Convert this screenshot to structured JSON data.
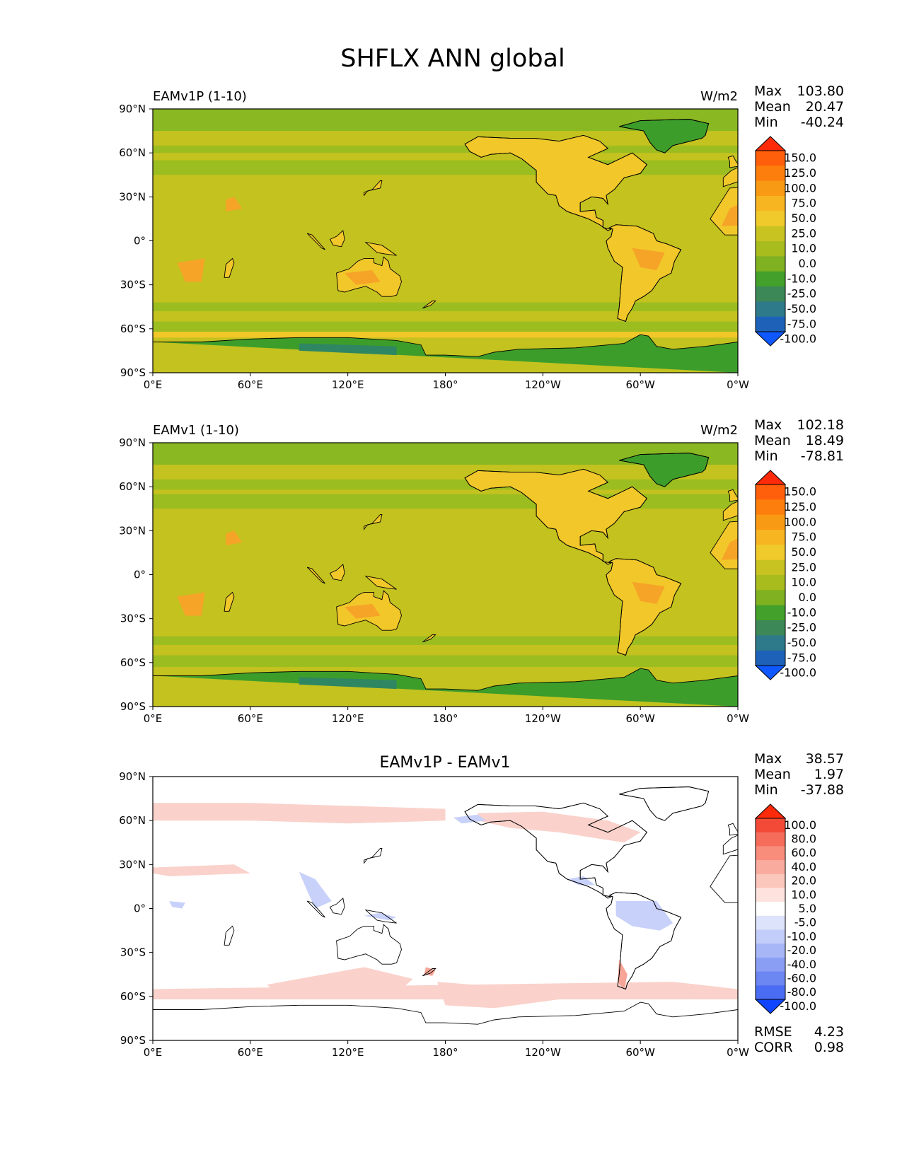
{
  "figure": {
    "title": "SHFLX ANN global"
  },
  "chart_data": [
    {
      "type": "heatmap",
      "panel_id": "test",
      "title_left": "EAMv1P (1-10)",
      "units": "W/m2",
      "stats": {
        "max_label": "Max",
        "max": "103.80",
        "mean_label": "Mean",
        "mean": "20.47",
        "min_label": "Min",
        "min": "-40.24"
      },
      "xticks": [
        "0°E",
        "60°E",
        "120°E",
        "180°",
        "120°W",
        "60°W",
        "0°W"
      ],
      "yticks": [
        "90°N",
        "60°N",
        "30°N",
        "0°",
        "30°S",
        "60°S",
        "90°S"
      ],
      "xlim": [
        0,
        360
      ],
      "ylim": [
        -90,
        90
      ],
      "colorbar": {
        "levels": [
          "150.0",
          "125.0",
          "100.0",
          "75.0",
          "50.0",
          "25.0",
          "10.0",
          "0.0",
          "-10.0",
          "-25.0",
          "-50.0",
          "-75.0",
          "-100.0"
        ],
        "colors_top_to_bottom": [
          "#ff2a0a",
          "#ff5f0a",
          "#fd7e0c",
          "#f99a14",
          "#f7b521",
          "#f0ca2a",
          "#c9c322",
          "#a8bc1e",
          "#7fb121",
          "#43a02a",
          "#3d8857",
          "#2e7a8a",
          "#1d62b8",
          "#0f58ff"
        ]
      },
      "map_field": {
        "ocean": "#c4c21f",
        "land": "#f2c72a",
        "hot_land": "#f6a427",
        "storm_track": "#9cbd20",
        "high_lat": "#8ab822",
        "antarctica": "#3c9d2b",
        "greenland": "#3c9d2b",
        "cold_patch": "#2f8662"
      }
    },
    {
      "type": "heatmap",
      "panel_id": "reference",
      "title_left": "EAMv1 (1-10)",
      "units": "W/m2",
      "stats": {
        "max_label": "Max",
        "max": "102.18",
        "mean_label": "Mean",
        "mean": "18.49",
        "min_label": "Min",
        "min": "-78.81"
      },
      "xticks": [
        "0°E",
        "60°E",
        "120°E",
        "180°",
        "120°W",
        "60°W",
        "0°W"
      ],
      "yticks": [
        "90°N",
        "60°N",
        "30°N",
        "0°",
        "30°S",
        "60°S",
        "90°S"
      ],
      "xlim": [
        0,
        360
      ],
      "ylim": [
        -90,
        90
      ],
      "colorbar": {
        "levels": [
          "150.0",
          "125.0",
          "100.0",
          "75.0",
          "50.0",
          "25.0",
          "10.0",
          "0.0",
          "-10.0",
          "-25.0",
          "-50.0",
          "-75.0",
          "-100.0"
        ],
        "colors_top_to_bottom": [
          "#ff2a0a",
          "#ff5f0a",
          "#fd7e0c",
          "#f99a14",
          "#f7b521",
          "#f0ca2a",
          "#c9c322",
          "#a8bc1e",
          "#7fb121",
          "#43a02a",
          "#3d8857",
          "#2e7a8a",
          "#1d62b8",
          "#0f58ff"
        ]
      },
      "map_field": {
        "ocean": "#c4c21f",
        "land": "#f2c72a",
        "hot_land": "#f6a427",
        "storm_track": "#9cbd20",
        "high_lat": "#8ab822",
        "antarctica": "#3c9d2b",
        "greenland": "#3c9d2b",
        "cold_patch": "#2f8662"
      }
    },
    {
      "type": "heatmap",
      "panel_id": "diff",
      "title_center": "EAMv1P - EAMv1",
      "stats": {
        "max_label": "Max",
        "max": "38.57",
        "mean_label": "Mean",
        "mean": "1.97",
        "min_label": "Min",
        "min": "-37.88"
      },
      "extra_stats": {
        "rmse_label": "RMSE",
        "rmse": "4.23",
        "corr_label": "CORR",
        "corr": "0.98"
      },
      "xticks": [
        "0°E",
        "60°E",
        "120°E",
        "180°",
        "120°W",
        "60°W",
        "0°W"
      ],
      "yticks": [
        "90°N",
        "60°N",
        "30°N",
        "0°",
        "30°S",
        "60°S",
        "90°S"
      ],
      "xlim": [
        0,
        360
      ],
      "ylim": [
        -90,
        90
      ],
      "colorbar": {
        "levels": [
          "100.0",
          "80.0",
          "60.0",
          "40.0",
          "20.0",
          "10.0",
          "5.0",
          "-5.0",
          "-10.0",
          "-20.0",
          "-40.0",
          "-60.0",
          "-80.0",
          "-100.0"
        ],
        "colors_top_to_bottom": [
          "#ff2a0a",
          "#f24a37",
          "#f66c5b",
          "#f88d7c",
          "#f9ab9d",
          "#fbc6bb",
          "#fde3dd",
          "#ffffff",
          "#dde3fb",
          "#c2cdf9",
          "#a6b6f6",
          "#8a9ff4",
          "#6c86f2",
          "#4a6cf2",
          "#0f45ff"
        ]
      },
      "map_field": {
        "background": "#ffffff",
        "positive": "#fad2cb",
        "strong_positive": "#f6a597",
        "negative": "#c8d1fa",
        "strong_negative": "#98a8f3"
      }
    }
  ]
}
